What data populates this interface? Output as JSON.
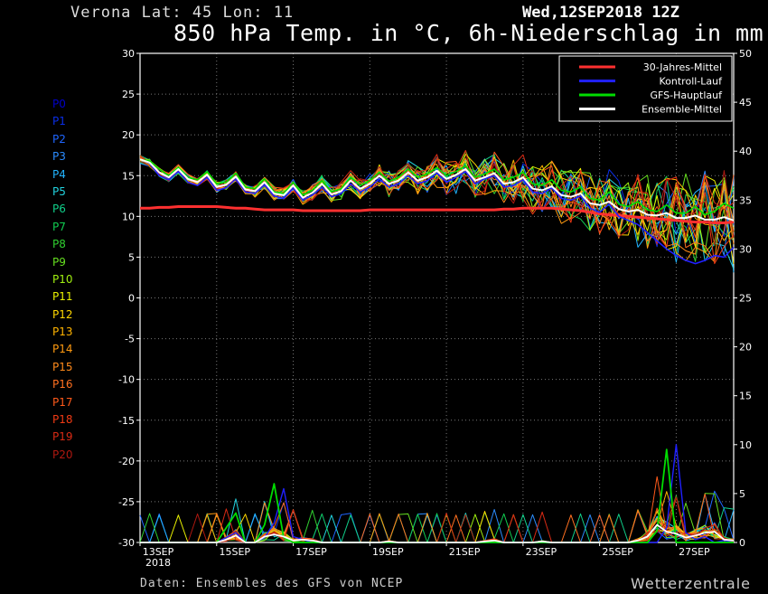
{
  "header": {
    "location": "Verona   Lat: 45 Lon: 11",
    "datetime": "Wed,12SEP2018 12Z",
    "title": "850 hPa Temp. in °C, 6h-Niederschlag in mm"
  },
  "footer": {
    "source": "Daten: Ensembles des GFS von NCEP",
    "brand": "Wetterzentrale"
  },
  "members": [
    {
      "label": "P0",
      "color": "#0000cc"
    },
    {
      "label": "P1",
      "color": "#0a2ee8"
    },
    {
      "label": "P2",
      "color": "#1f66ff"
    },
    {
      "label": "P3",
      "color": "#2b8cff"
    },
    {
      "label": "P4",
      "color": "#22b4ff"
    },
    {
      "label": "P5",
      "color": "#22d4e0"
    },
    {
      "label": "P6",
      "color": "#10d08a"
    },
    {
      "label": "P7",
      "color": "#10cc50"
    },
    {
      "label": "P8",
      "color": "#30d030"
    },
    {
      "label": "P9",
      "color": "#66e020"
    },
    {
      "label": "P10",
      "color": "#a0f010"
    },
    {
      "label": "P11",
      "color": "#e8f000"
    },
    {
      "label": "P12",
      "color": "#ffd800"
    },
    {
      "label": "P13",
      "color": "#ffb400"
    },
    {
      "label": "P14",
      "color": "#ff9a10"
    },
    {
      "label": "P15",
      "color": "#ff8a1a"
    },
    {
      "label": "P16",
      "color": "#ff7020"
    },
    {
      "label": "P17",
      "color": "#ff5a1a"
    },
    {
      "label": "P18",
      "color": "#f03a14"
    },
    {
      "label": "P19",
      "color": "#d82a14"
    },
    {
      "label": "P20",
      "color": "#b01810"
    }
  ],
  "chart_data": {
    "type": "line",
    "x_start": "2018-09-13 00Z",
    "step_hours": 6,
    "x_ticks": [
      "13SEP",
      "15SEP",
      "17SEP",
      "19SEP",
      "21SEP",
      "23SEP",
      "25SEP",
      "27SEP"
    ],
    "x_tick_year": "2018",
    "ylim_left": [
      -30,
      30
    ],
    "yticks_left": [
      30,
      25,
      20,
      15,
      10,
      5,
      0,
      -5,
      -10,
      -15,
      -20,
      -25,
      -30
    ],
    "ylim_right": [
      0,
      50
    ],
    "yticks_right": [
      50,
      45,
      40,
      35,
      30,
      25,
      20,
      15,
      10,
      5,
      0
    ],
    "grid": true,
    "legend": {
      "placement": "top-right",
      "items": [
        {
          "name": "30-Jahres-Mittel",
          "color": "#ff3030"
        },
        {
          "name": "Kontroll-Lauf",
          "color": "#2020ff"
        },
        {
          "name": "GFS-Hauptlauf",
          "color": "#00dd00"
        },
        {
          "name": "Ensemble-Mittel",
          "color": "#ffffff"
        }
      ]
    },
    "climate_mean_temp": [
      11.0,
      11.0,
      11.1,
      11.1,
      11.2,
      11.2,
      11.2,
      11.2,
      11.2,
      11.1,
      11.0,
      11.0,
      10.9,
      10.8,
      10.8,
      10.8,
      10.8,
      10.7,
      10.7,
      10.7,
      10.7,
      10.7,
      10.7,
      10.7,
      10.8,
      10.8,
      10.8,
      10.8,
      10.8,
      10.8,
      10.8,
      10.8,
      10.8,
      10.8,
      10.8,
      10.8,
      10.8,
      10.8,
      10.9,
      10.9,
      11.0,
      11.0,
      11.0,
      11.0,
      10.9,
      10.8,
      10.7,
      10.5,
      10.3,
      10.2,
      10.1,
      10.0,
      9.9,
      9.8,
      9.7,
      9.6,
      9.5,
      9.4,
      9.3,
      9.3,
      9.2,
      9.2,
      9.3
    ],
    "control_temp": [
      17,
      16.5,
      15,
      14.5,
      15.5,
      14.2,
      13.8,
      14.8,
      13.2,
      13.5,
      14.6,
      13.0,
      12.8,
      13.9,
      12.5,
      12.2,
      13.5,
      12.0,
      12.6,
      13.6,
      12.4,
      12.8,
      14.0,
      13.0,
      13.6,
      14.6,
      13.6,
      14.0,
      15.0,
      14.0,
      14.4,
      15.3,
      14.2,
      14.8,
      15.5,
      14.0,
      14.6,
      15.0,
      13.6,
      13.8,
      14.5,
      13.0,
      12.8,
      13.5,
      12.2,
      12.0,
      12.5,
      11.0,
      10.5,
      11.5,
      10.0,
      9.5,
      9.0,
      8.0,
      7.0,
      6.0,
      5.2,
      4.6,
      4.2,
      4.6,
      5.2,
      5.0,
      6.2
    ],
    "gfs_main_temp": [
      17,
      16.8,
      15.8,
      15.0,
      16.0,
      14.8,
      14.5,
      15.5,
      14.0,
      14.2,
      15.3,
      13.6,
      13.4,
      14.6,
      13.0,
      12.8,
      14.2,
      12.6,
      13.2,
      14.4,
      13.0,
      13.4,
      14.8,
      13.8,
      14.4,
      15.4,
      14.3,
      14.8,
      15.8,
      14.8,
      15.2,
      16.0,
      15.0,
      15.5,
      16.2,
      14.8,
      15.2,
      15.8,
      14.5,
      14.8,
      15.4,
      14.0,
      13.8,
      14.5,
      13.2,
      13.0,
      13.6,
      12.2,
      12.0,
      13.0,
      11.5,
      11.2,
      11.8,
      10.8,
      10.6,
      11.4,
      10.4,
      10.4,
      11.2,
      10.2,
      10.6,
      11.6,
      11.0
    ],
    "ensemble_mean_temp": [
      17,
      16.6,
      15.4,
      14.8,
      15.8,
      14.6,
      14.2,
      15.1,
      13.6,
      13.9,
      14.9,
      13.3,
      13.1,
      14.2,
      12.8,
      12.6,
      13.8,
      12.3,
      12.9,
      14.0,
      12.7,
      13.1,
      14.4,
      13.4,
      14.0,
      15.0,
      14.0,
      14.4,
      15.4,
      14.4,
      14.8,
      15.6,
      14.6,
      15.1,
      15.8,
      14.4,
      14.8,
      15.3,
      14.0,
      14.2,
      14.8,
      13.4,
      13.2,
      13.7,
      12.6,
      12.4,
      12.8,
      11.6,
      11.4,
      11.8,
      10.9,
      10.6,
      10.8,
      10.2,
      10.1,
      10.4,
      9.8,
      9.8,
      10.1,
      9.6,
      9.6,
      9.9,
      9.5
    ],
    "ensemble_mean_precip": [
      0,
      0,
      0,
      0,
      0,
      0,
      0,
      0,
      0,
      0.3,
      0.7,
      0,
      0,
      0.6,
      0.8,
      0.6,
      0.2,
      0.3,
      0.2,
      0,
      0,
      0,
      0,
      0,
      0,
      0,
      0.1,
      0,
      0,
      0,
      0,
      0,
      0,
      0,
      0,
      0,
      0.1,
      0.2,
      0,
      0,
      0,
      0,
      0.1,
      0,
      0,
      0,
      0,
      0,
      0,
      0,
      0,
      0,
      0.2,
      0.6,
      1.8,
      1.1,
      0.9,
      0.5,
      0.7,
      1.0,
      1.1,
      0.3,
      0.2
    ],
    "gfs_main_precip": [
      0,
      0,
      0,
      0,
      0,
      0,
      0,
      0,
      0,
      1.5,
      3.0,
      0,
      0,
      1.8,
      6.0,
      0.5,
      0,
      0,
      0,
      0,
      0,
      0,
      0,
      0,
      0,
      0,
      0,
      0,
      0,
      0,
      0,
      0,
      0,
      0,
      0,
      0,
      0,
      0,
      0,
      0,
      0,
      0,
      0,
      0,
      0,
      0,
      0,
      0,
      0,
      0,
      0,
      0,
      0,
      0,
      1.2,
      9.5,
      0,
      0,
      0,
      0,
      0,
      0,
      0
    ],
    "control_precip": [
      0,
      0,
      0,
      0,
      0,
      0,
      0,
      0,
      0,
      0.5,
      1.0,
      0,
      0,
      0.5,
      2.0,
      5.5,
      0.6,
      0.3,
      0,
      0,
      0,
      0,
      0,
      0,
      0,
      0,
      0,
      0,
      0,
      0,
      0,
      0,
      0,
      0,
      0,
      0,
      0,
      0,
      0,
      0,
      0,
      0,
      0,
      0,
      0,
      0,
      0,
      0,
      0,
      0,
      0,
      0,
      0,
      0,
      0,
      1.5,
      10.0,
      1.0,
      0.3,
      0.6,
      0,
      0.2,
      0
    ]
  }
}
